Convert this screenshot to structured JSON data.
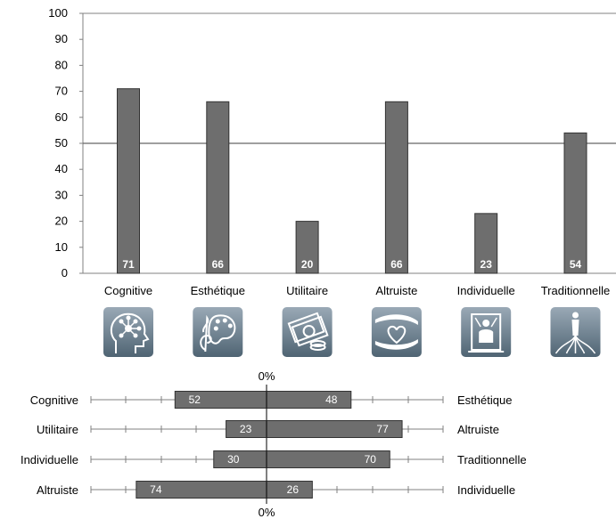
{
  "colors": {
    "bar_fill": "#6e6e6e",
    "bar_stroke": "#333333",
    "axis": "#808080",
    "ref_line": "#666666",
    "text": "#000000",
    "label_on_bar": "#ffffff",
    "icon_bg_top": "#9aa9b6",
    "icon_bg_bottom": "#4f6473"
  },
  "chart_data": [
    {
      "type": "bar",
      "categories": [
        "Cognitive",
        "Esthétique",
        "Utilitaire",
        "Altruiste",
        "Individuelle",
        "Traditionnelle"
      ],
      "values": [
        71,
        66,
        20,
        66,
        23,
        54
      ],
      "ylim": [
        0,
        100
      ],
      "yticks": [
        0,
        10,
        20,
        30,
        40,
        50,
        60,
        70,
        80,
        90,
        100
      ],
      "reference_line": 50,
      "grid": false,
      "data_labels": true,
      "icons": [
        "brain-network-icon",
        "music-palette-icon",
        "money-icon",
        "heart-hands-icon",
        "throne-person-icon",
        "tree-roots-icon"
      ]
    },
    {
      "type": "bar",
      "orientation": "horizontal-diverging",
      "center_label_top": "0%",
      "center_label_bottom": "0%",
      "rows": [
        {
          "left_label": "Cognitive",
          "right_label": "Esthétique",
          "left_value": 52,
          "right_value": 48
        },
        {
          "left_label": "Utilitaire",
          "right_label": "Altruiste",
          "left_value": 23,
          "right_value": 77
        },
        {
          "left_label": "Individuelle",
          "right_label": "Traditionnelle",
          "left_value": 30,
          "right_value": 70
        },
        {
          "left_label": "Altruiste",
          "right_label": "Individuelle",
          "left_value": 74,
          "right_value": 26
        }
      ]
    }
  ]
}
